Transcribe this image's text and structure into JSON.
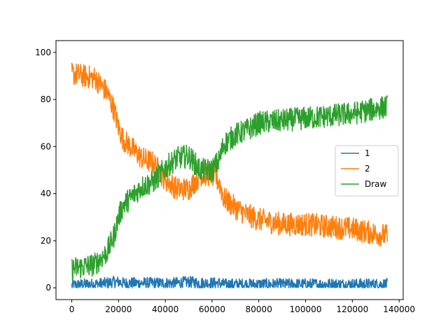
{
  "chart_data": {
    "type": "line",
    "title": "",
    "xlabel": "",
    "ylabel": "",
    "xlim": [
      -6750,
      141750
    ],
    "ylim": [
      -5,
      105
    ],
    "grid": false,
    "legend_position": "center-right",
    "x_ticks": [
      0,
      20000,
      40000,
      60000,
      80000,
      100000,
      120000,
      140000
    ],
    "x_tick_labels": [
      "0",
      "20000",
      "40000",
      "60000",
      "80000",
      "100000",
      "120000",
      "140000"
    ],
    "y_ticks": [
      0,
      20,
      40,
      60,
      80,
      100
    ],
    "y_tick_labels": [
      "0",
      "20",
      "40",
      "60",
      "80",
      "100"
    ],
    "x": [
      0,
      5000,
      10000,
      15000,
      18000,
      20000,
      22000,
      25000,
      30000,
      35000,
      40000,
      45000,
      50000,
      55000,
      60000,
      63000,
      65000,
      70000,
      75000,
      80000,
      90000,
      100000,
      110000,
      120000,
      125000,
      130000,
      135000
    ],
    "series": [
      {
        "name": "1",
        "color": "#1f77b4",
        "values": [
          1,
          1.5,
          1.5,
          2,
          2.5,
          2.5,
          2,
          2,
          2,
          2,
          2,
          2,
          2.5,
          2,
          2,
          2,
          1.5,
          1.5,
          1.5,
          1.5,
          1.5,
          1.5,
          1.5,
          1.5,
          1.5,
          1.5,
          1.5
        ],
        "noise": 2.5
      },
      {
        "name": "2",
        "color": "#ff7f0e",
        "values": [
          91,
          90,
          89,
          83,
          76,
          68,
          63,
          60,
          55,
          53,
          46,
          42,
          42,
          48,
          48,
          45,
          38,
          34,
          31,
          29,
          27,
          27,
          26,
          25,
          24,
          23,
          22
        ],
        "noise": 5
      },
      {
        "name": "Draw",
        "color": "#2ca02c",
        "values": [
          8,
          9,
          10,
          15,
          22,
          30,
          35,
          38,
          43,
          45,
          51,
          55,
          56,
          50,
          50,
          54,
          61,
          65,
          67,
          70,
          71,
          72,
          73,
          74,
          75,
          76,
          77
        ],
        "noise": 5
      }
    ]
  }
}
